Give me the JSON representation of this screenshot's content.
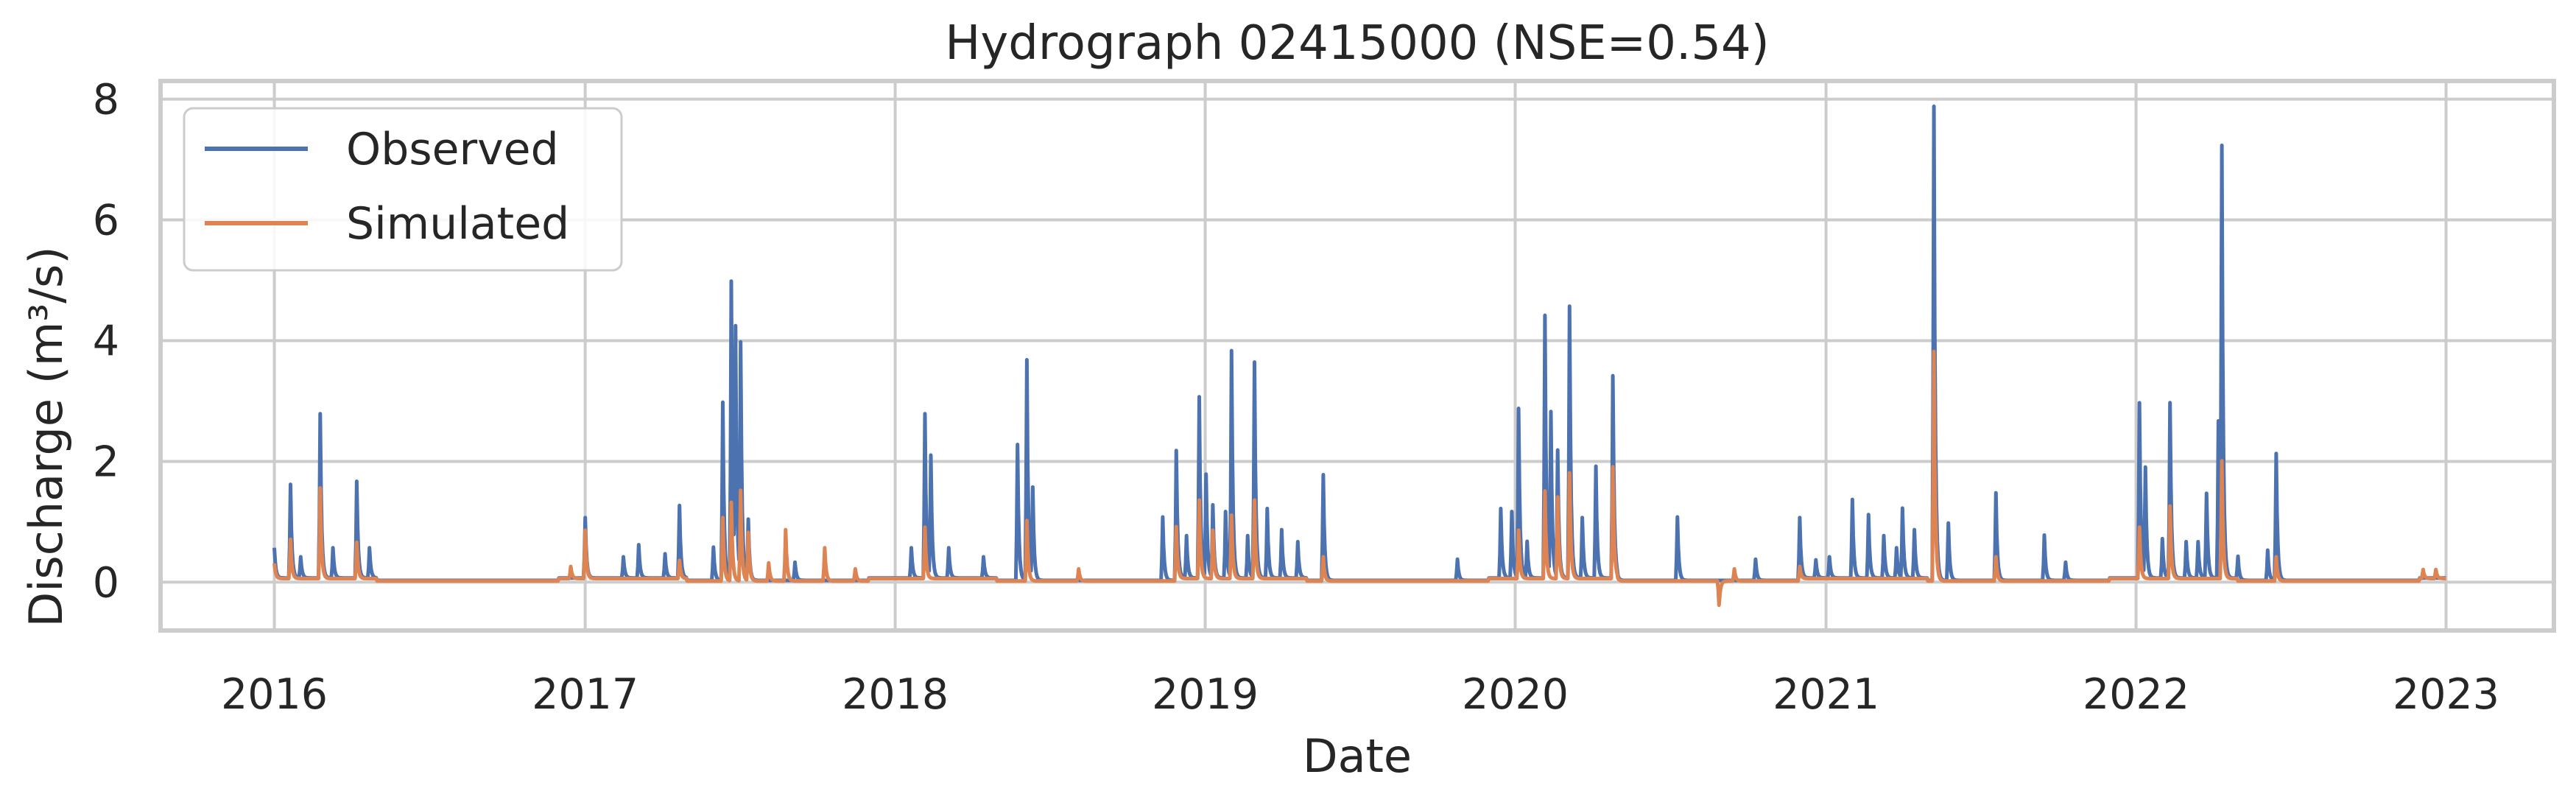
{
  "chart_data": {
    "type": "line",
    "title": "Hydrograph 02415000  (NSE=0.54)",
    "xlabel": "Date",
    "ylabel": "Discharge (m³/s)",
    "x_range": [
      "2015-08-20",
      "2023-05-08"
    ],
    "ylim": [
      -0.8,
      8.3
    ],
    "x_ticks": [
      {
        "date": "2016-01-01",
        "label": "2016"
      },
      {
        "date": "2017-01-01",
        "label": "2017"
      },
      {
        "date": "2018-01-01",
        "label": "2018"
      },
      {
        "date": "2019-01-01",
        "label": "2019"
      },
      {
        "date": "2020-01-01",
        "label": "2020"
      },
      {
        "date": "2021-01-01",
        "label": "2021"
      },
      {
        "date": "2022-01-01",
        "label": "2022"
      },
      {
        "date": "2023-01-01",
        "label": "2023"
      }
    ],
    "y_ticks": [
      0,
      2,
      4,
      6,
      8
    ],
    "grid": true,
    "legend": {
      "position": "top-left"
    },
    "series": [
      {
        "name": "Observed",
        "color": "#4c72b0",
        "baseline": 0.03,
        "peaks": [
          [
            "2016-01-01",
            0.5
          ],
          [
            "2016-01-20",
            1.55
          ],
          [
            "2016-02-01",
            0.35
          ],
          [
            "2016-02-24",
            2.72
          ],
          [
            "2016-03-10",
            0.5
          ],
          [
            "2016-04-07",
            1.6
          ],
          [
            "2016-04-22",
            0.5
          ],
          [
            "2017-01-01",
            1.0
          ],
          [
            "2017-02-15",
            0.35
          ],
          [
            "2017-03-05",
            0.55
          ],
          [
            "2017-04-05",
            0.4
          ],
          [
            "2017-04-22",
            1.2
          ],
          [
            "2017-06-01",
            0.55
          ],
          [
            "2017-06-12",
            2.95
          ],
          [
            "2017-06-22",
            4.95
          ],
          [
            "2017-06-27",
            4.0
          ],
          [
            "2017-07-03",
            3.85
          ],
          [
            "2017-07-12",
            1.0
          ],
          [
            "2017-09-05",
            0.3
          ],
          [
            "2018-01-20",
            0.5
          ],
          [
            "2018-02-05",
            2.72
          ],
          [
            "2018-02-12",
            2.0
          ],
          [
            "2018-03-05",
            0.5
          ],
          [
            "2018-04-15",
            0.35
          ],
          [
            "2018-05-25",
            2.25
          ],
          [
            "2018-06-05",
            3.65
          ],
          [
            "2018-06-12",
            1.5
          ],
          [
            "2018-11-12",
            1.05
          ],
          [
            "2018-11-28",
            2.15
          ],
          [
            "2018-12-10",
            0.7
          ],
          [
            "2018-12-25",
            3.0
          ],
          [
            "2019-01-02",
            1.7
          ],
          [
            "2019-01-10",
            1.2
          ],
          [
            "2019-01-25",
            1.1
          ],
          [
            "2019-02-01",
            3.75
          ],
          [
            "2019-02-20",
            0.7
          ],
          [
            "2019-02-28",
            3.57
          ],
          [
            "2019-03-15",
            1.15
          ],
          [
            "2019-04-01",
            0.8
          ],
          [
            "2019-04-20",
            0.6
          ],
          [
            "2019-05-20",
            1.75
          ],
          [
            "2019-10-25",
            0.35
          ],
          [
            "2019-12-15",
            1.15
          ],
          [
            "2019-12-28",
            1.1
          ],
          [
            "2020-01-05",
            2.8
          ],
          [
            "2020-01-15",
            0.6
          ],
          [
            "2020-02-05",
            4.35
          ],
          [
            "2020-02-12",
            2.7
          ],
          [
            "2020-02-20",
            2.1
          ],
          [
            "2020-03-05",
            4.5
          ],
          [
            "2020-03-20",
            1.0
          ],
          [
            "2020-04-05",
            1.85
          ],
          [
            "2020-04-25",
            3.35
          ],
          [
            "2020-07-10",
            1.05
          ],
          [
            "2020-10-10",
            0.35
          ],
          [
            "2020-12-01",
            1.0
          ],
          [
            "2020-12-20",
            0.3
          ],
          [
            "2021-01-05",
            0.35
          ],
          [
            "2021-02-01",
            1.3
          ],
          [
            "2021-02-20",
            1.05
          ],
          [
            "2021-03-10",
            0.7
          ],
          [
            "2021-03-25",
            0.5
          ],
          [
            "2021-04-01",
            1.15
          ],
          [
            "2021-04-15",
            0.8
          ],
          [
            "2021-05-08",
            7.85
          ],
          [
            "2021-05-25",
            0.95
          ],
          [
            "2021-07-20",
            1.45
          ],
          [
            "2021-09-15",
            0.75
          ],
          [
            "2021-10-10",
            0.3
          ],
          [
            "2022-01-05",
            2.9
          ],
          [
            "2022-01-12",
            1.8
          ],
          [
            "2022-02-01",
            0.65
          ],
          [
            "2022-02-10",
            2.9
          ],
          [
            "2022-03-01",
            0.6
          ],
          [
            "2022-03-15",
            0.6
          ],
          [
            "2022-03-25",
            1.4
          ],
          [
            "2022-04-08",
            2.6
          ],
          [
            "2022-04-12",
            6.95
          ],
          [
            "2022-05-01",
            0.4
          ],
          [
            "2022-06-05",
            0.5
          ],
          [
            "2022-06-15",
            2.1
          ]
        ]
      },
      {
        "name": "Simulated",
        "color": "#dd8452",
        "baseline": 0.02,
        "peaks": [
          [
            "2016-01-01",
            0.25
          ],
          [
            "2016-01-20",
            0.65
          ],
          [
            "2016-02-24",
            1.5
          ],
          [
            "2016-04-07",
            0.6
          ],
          [
            "2016-12-15",
            0.2
          ],
          [
            "2017-01-01",
            0.8
          ],
          [
            "2017-04-22",
            0.3
          ],
          [
            "2017-06-12",
            1.05
          ],
          [
            "2017-06-22",
            1.3
          ],
          [
            "2017-07-03",
            1.5
          ],
          [
            "2017-07-12",
            0.8
          ],
          [
            "2017-08-05",
            0.3
          ],
          [
            "2017-08-25",
            0.85
          ],
          [
            "2017-10-10",
            0.55
          ],
          [
            "2017-11-15",
            0.2
          ],
          [
            "2018-02-05",
            0.85
          ],
          [
            "2018-06-05",
            1.0
          ],
          [
            "2018-08-05",
            0.2
          ],
          [
            "2018-11-28",
            0.9
          ],
          [
            "2018-12-25",
            1.3
          ],
          [
            "2019-01-10",
            0.8
          ],
          [
            "2019-02-01",
            1.05
          ],
          [
            "2019-02-28",
            1.3
          ],
          [
            "2019-05-20",
            0.4
          ],
          [
            "2020-01-05",
            0.8
          ],
          [
            "2020-02-05",
            1.45
          ],
          [
            "2020-02-20",
            1.35
          ],
          [
            "2020-03-05",
            1.75
          ],
          [
            "2020-04-25",
            1.85
          ],
          [
            "2020-08-28",
            -0.4
          ],
          [
            "2020-09-15",
            0.2
          ],
          [
            "2020-12-01",
            0.2
          ],
          [
            "2021-05-08",
            3.8
          ],
          [
            "2021-07-20",
            0.4
          ],
          [
            "2022-01-05",
            0.85
          ],
          [
            "2022-02-10",
            1.2
          ],
          [
            "2022-04-12",
            1.95
          ],
          [
            "2022-06-15",
            0.4
          ],
          [
            "2022-12-05",
            0.15
          ],
          [
            "2022-12-20",
            0.15
          ]
        ]
      }
    ]
  }
}
